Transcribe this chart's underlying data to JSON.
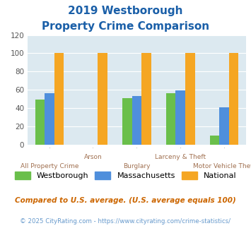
{
  "title_line1": "2019 Westborough",
  "title_line2": "Property Crime Comparison",
  "categories": [
    "All Property Crime",
    "Arson",
    "Burglary",
    "Larceny & Theft",
    "Motor Vehicle Theft"
  ],
  "westborough": [
    49,
    null,
    51,
    56,
    10
  ],
  "massachusetts": [
    56,
    null,
    53,
    59,
    41
  ],
  "national": [
    100,
    100,
    100,
    100,
    100
  ],
  "color_westborough": "#6abf4b",
  "color_massachusetts": "#4f8fdc",
  "color_national": "#f5a623",
  "ylim": [
    0,
    120
  ],
  "yticks": [
    0,
    20,
    40,
    60,
    80,
    100,
    120
  ],
  "bg_color": "#dce9f0",
  "title_color": "#1a5fa8",
  "xlabel_color": "#a07050",
  "legend_label_westborough": "Westborough",
  "legend_label_massachusetts": "Massachusetts",
  "legend_label_national": "National",
  "footnote1": "Compared to U.S. average. (U.S. average equals 100)",
  "footnote2": "© 2025 CityRating.com - https://www.cityrating.com/crime-statistics/",
  "footnote1_color": "#cc6600",
  "footnote2_color": "#6699cc"
}
